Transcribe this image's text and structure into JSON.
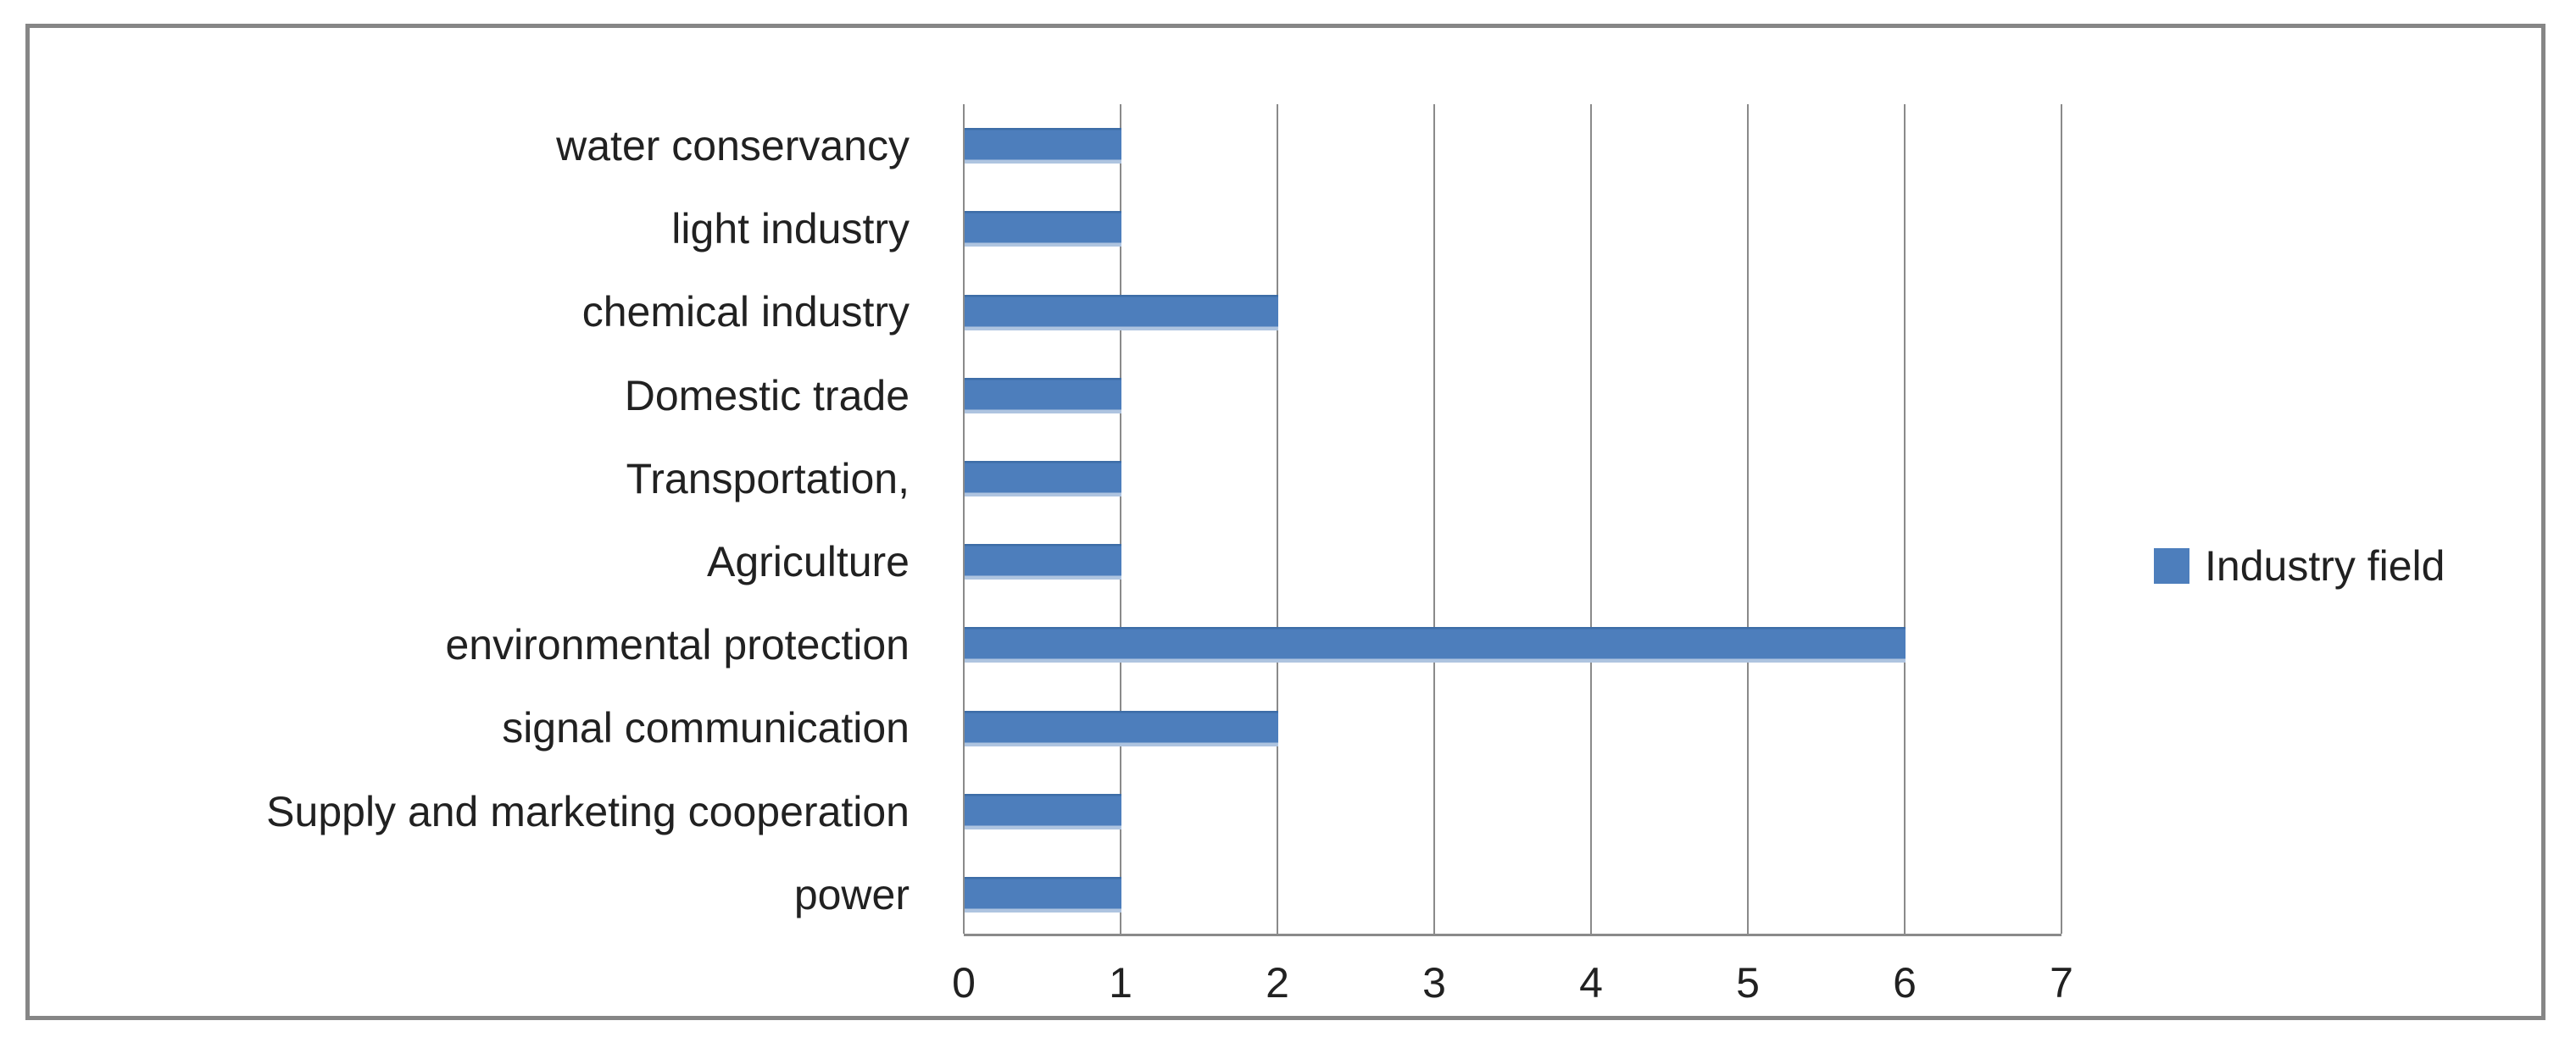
{
  "chart_data": {
    "type": "bar",
    "orientation": "horizontal",
    "title": "",
    "xlabel": "",
    "ylabel": "",
    "categories": [
      "water conservancy",
      "light industry",
      "chemical industry",
      "Domestic trade",
      "Transportation,",
      "Agriculture",
      "environmental protection",
      "signal communication",
      "Supply and marketing cooperation",
      "power"
    ],
    "series": [
      {
        "name": "Industry field",
        "values": [
          1,
          1,
          2,
          1,
          1,
          1,
          6,
          2,
          1,
          1
        ]
      }
    ],
    "series_name": "Industry field",
    "xlim": [
      0,
      7
    ],
    "xticks": [
      0,
      1,
      2,
      3,
      4,
      5,
      6,
      7
    ],
    "grid": "vertical",
    "legend_position": "right"
  },
  "legend": {
    "label": "Industry field"
  },
  "colors": {
    "bar": "#4d7ebc",
    "bar_top_edge": "#3d6da7",
    "bar_bottom_edge": "#aec4e0",
    "gridline": "#8a8a8a",
    "frame_border": "#868686",
    "text": "#212121",
    "background": "#ffffff"
  }
}
